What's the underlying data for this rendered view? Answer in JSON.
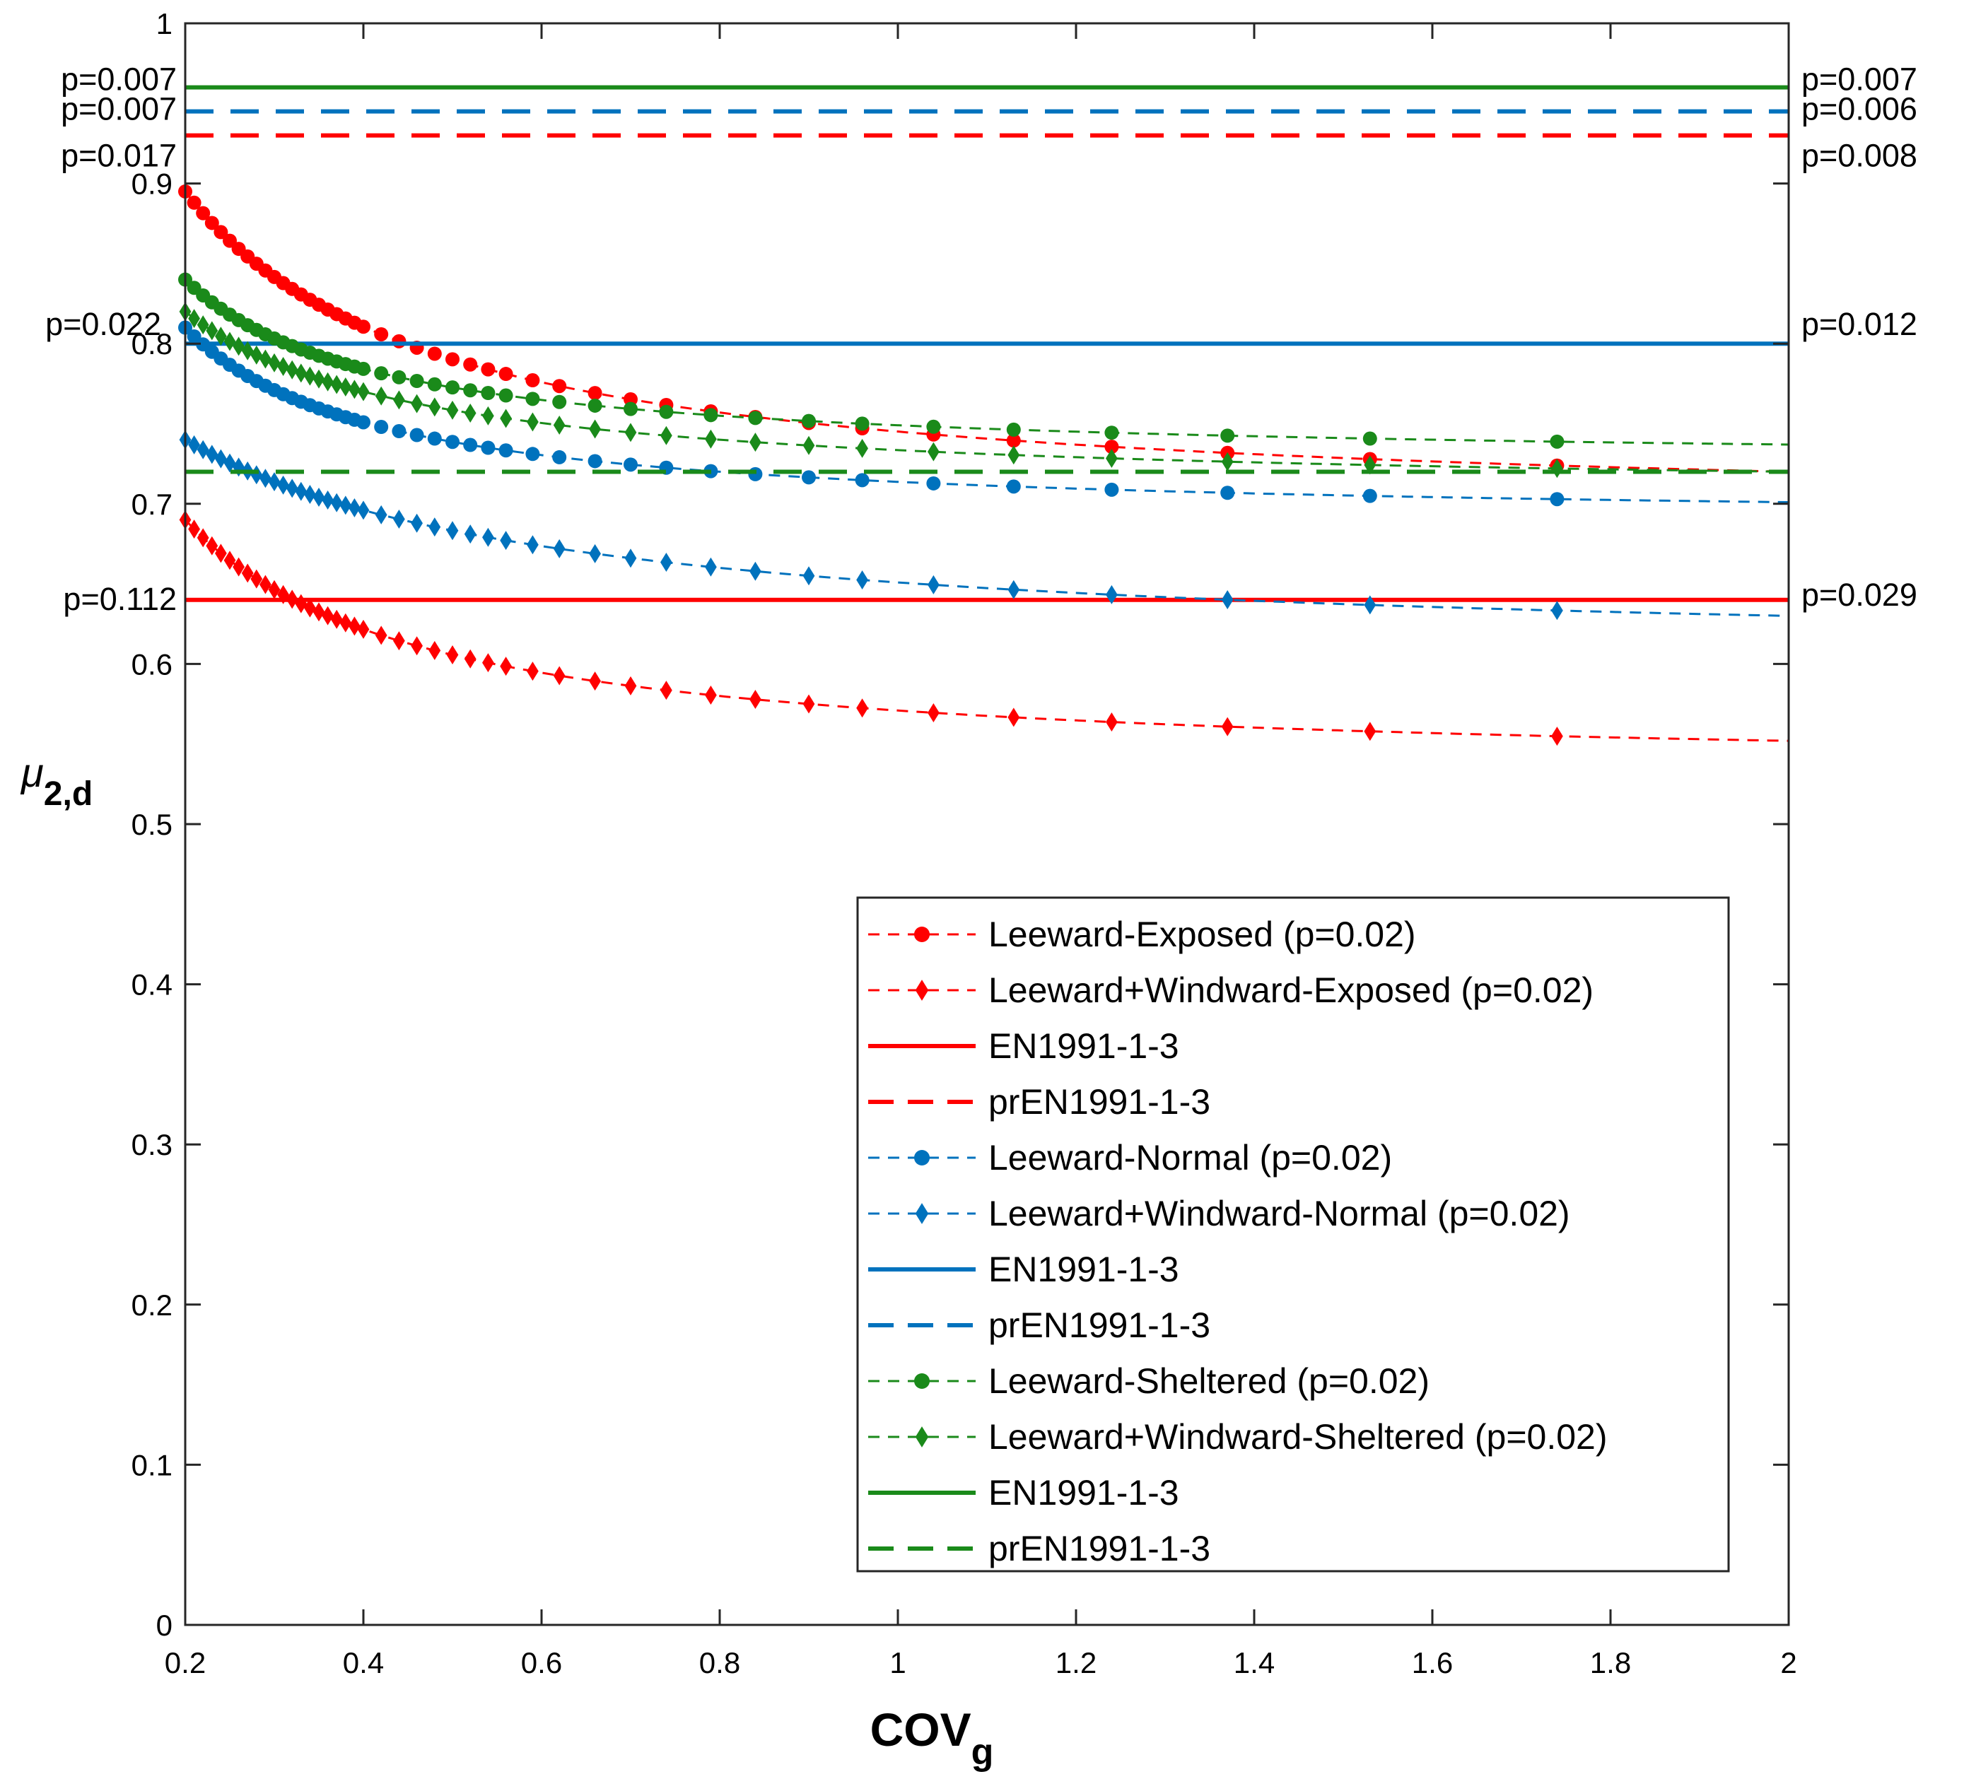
{
  "chart_data": {
    "type": "line",
    "title": "",
    "xlabel": "COV",
    "xlabel_subscript": "g",
    "ylabel": "μ",
    "ylabel_subscript": "2,d",
    "xlim": [
      0.2,
      2
    ],
    "ylim": [
      0,
      1
    ],
    "xticks": [
      0.2,
      0.4,
      0.6,
      0.8,
      1,
      1.2,
      1.4,
      1.6,
      1.8,
      2
    ],
    "xtick_labels": [
      "0.2",
      "0.4",
      "0.6",
      "0.8",
      "1",
      "1.2",
      "1.4",
      "1.6",
      "1.8",
      "2"
    ],
    "yticks": [
      0,
      0.1,
      0.2,
      0.3,
      0.4,
      0.5,
      0.6,
      0.7,
      0.8,
      0.9,
      1
    ],
    "ytick_labels": [
      "0",
      "0.1",
      "0.2",
      "0.3",
      "0.4",
      "0.5",
      "0.6",
      "0.7",
      "0.8",
      "0.9",
      "1"
    ],
    "grid": false,
    "legend_position": "bottom-right",
    "curve_model": "y = a + b / (x + c)",
    "colors": {
      "red": "#ff0000",
      "blue": "#0072bd",
      "green": "#1a8a1a"
    },
    "series": [
      {
        "name": "Leeward-Exposed (p=0.02)",
        "color": "#ff0000",
        "linestyle": "dashed-thin",
        "marker": "circle",
        "y_at_x0_2": 0.895,
        "y_at_x0_8": 0.757,
        "y_at_x2": 0.72
      },
      {
        "name": "Leeward+Windward-Exposed (p=0.02)",
        "color": "#ff0000",
        "linestyle": "dashed-thin",
        "marker": "diamond",
        "y_at_x0_2": 0.69,
        "y_at_x0_8": 0.58,
        "y_at_x2": 0.552
      },
      {
        "name": "EN1991-1-3",
        "color": "#ff0000",
        "linestyle": "solid",
        "marker": "none",
        "value": 0.64,
        "left_label": "p=0.112",
        "right_label": "p=0.029"
      },
      {
        "name": "prEN1991-1-3",
        "color": "#ff0000",
        "linestyle": "dashed",
        "marker": "none",
        "value": 0.93,
        "left_label": "p=0.017",
        "right_label": "p=0.008"
      },
      {
        "name": "Leeward-Normal (p=0.02)",
        "color": "#0072bd",
        "linestyle": "dashed-thin",
        "marker": "circle",
        "y_at_x0_2": 0.81,
        "y_at_x0_8": 0.72,
        "y_at_x2": 0.701
      },
      {
        "name": "Leeward+Windward-Normal (p=0.02)",
        "color": "#0072bd",
        "linestyle": "dashed-thin",
        "marker": "diamond",
        "y_at_x0_2": 0.74,
        "y_at_x0_8": 0.66,
        "y_at_x2": 0.63
      },
      {
        "name": "EN1991-1-3",
        "color": "#0072bd",
        "linestyle": "solid",
        "marker": "none",
        "value": 0.8,
        "left_label": "p=0.022",
        "right_label": "p=0.012"
      },
      {
        "name": "prEN1991-1-3",
        "color": "#0072bd",
        "linestyle": "dashed",
        "marker": "none",
        "value": 0.945,
        "left_label": "p=0.007",
        "right_label": "p=0.006"
      },
      {
        "name": "Leeward-Sheltered (p=0.02)",
        "color": "#1a8a1a",
        "linestyle": "dashed-thin",
        "marker": "circle",
        "y_at_x0_2": 0.84,
        "y_at_x0_8": 0.755,
        "y_at_x2": 0.737
      },
      {
        "name": "Leeward+Windward-Sheltered (p=0.02)",
        "color": "#1a8a1a",
        "linestyle": "dashed-thin",
        "marker": "diamond",
        "y_at_x0_2": 0.82,
        "y_at_x0_8": 0.74,
        "y_at_x2": 0.72
      },
      {
        "name": "EN1991-1-3",
        "color": "#1a8a1a",
        "linestyle": "solid",
        "marker": "none",
        "value": 0.96,
        "left_label": "p=0.007",
        "right_label": "p=0.007"
      },
      {
        "name": "prEN1991-1-3",
        "color": "#1a8a1a",
        "linestyle": "dashed",
        "marker": "none",
        "value": 0.72
      }
    ],
    "marker_x": [
      0.2,
      0.21,
      0.22,
      0.23,
      0.24,
      0.25,
      0.26,
      0.27,
      0.28,
      0.29,
      0.3,
      0.31,
      0.32,
      0.33,
      0.34,
      0.35,
      0.36,
      0.37,
      0.38,
      0.39,
      0.4,
      0.42,
      0.44,
      0.46,
      0.48,
      0.5,
      0.52,
      0.54,
      0.56,
      0.59,
      0.62,
      0.66,
      0.7,
      0.74,
      0.79,
      0.84,
      0.9,
      0.96,
      1.04,
      1.13,
      1.24,
      1.37,
      1.53,
      1.74
    ]
  }
}
